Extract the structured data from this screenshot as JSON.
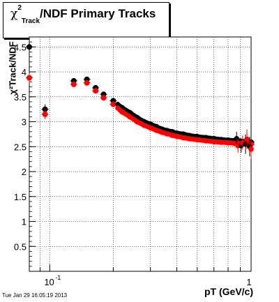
{
  "chart_data": {
    "type": "scatter",
    "title": "χ²_Track/NDF  Primary Tracks",
    "xlabel": "pT (GeV/c)",
    "ylabel": "χ²_Track/NDF",
    "xscale": "log",
    "xlim": [
      0.08,
      1.0
    ],
    "ylim": [
      0,
      4.5
    ],
    "grid": true,
    "yticks": [
      "0.5",
      "1",
      "1.5",
      "2",
      "2.5",
      "3",
      "3.5",
      "4",
      "4.5"
    ],
    "xticks": [
      "10",
      "-1",
      "1"
    ],
    "series": [
      {
        "color": "#000000",
        "x": [
          0.08,
          0.095,
          0.13,
          0.15,
          0.165,
          0.18,
          0.2,
          0.22,
          0.24,
          0.26,
          0.28,
          0.3,
          0.32,
          0.34,
          0.36,
          0.38,
          0.4,
          0.43,
          0.46,
          0.5,
          0.55,
          0.6,
          0.65,
          0.7,
          0.75,
          0.8,
          0.85,
          0.9,
          0.95,
          1.0
        ],
        "y": [
          4.5,
          3.25,
          3.82,
          3.85,
          3.68,
          3.55,
          3.42,
          3.28,
          3.18,
          3.08,
          3.0,
          2.95,
          2.9,
          2.85,
          2.82,
          2.8,
          2.77,
          2.75,
          2.72,
          2.7,
          2.68,
          2.66,
          2.64,
          2.63,
          2.62,
          2.61,
          2.6,
          2.59,
          2.58,
          2.57
        ]
      },
      {
        "color": "#ff0000",
        "x": [
          0.08,
          0.095,
          0.13,
          0.15,
          0.165,
          0.18,
          0.2,
          0.22,
          0.24,
          0.26,
          0.28,
          0.3,
          0.32,
          0.34,
          0.36,
          0.38,
          0.4,
          0.43,
          0.46,
          0.5,
          0.55,
          0.6,
          0.65,
          0.7,
          0.75,
          0.8,
          0.85,
          0.9,
          0.95,
          1.0
        ],
        "y": [
          3.88,
          3.15,
          3.75,
          3.78,
          3.62,
          3.48,
          3.35,
          3.2,
          3.1,
          3.0,
          2.93,
          2.88,
          2.83,
          2.79,
          2.76,
          2.73,
          2.71,
          2.68,
          2.66,
          2.64,
          2.62,
          2.6,
          2.59,
          2.58,
          2.57,
          2.56,
          2.56,
          2.55,
          2.55,
          2.55
        ]
      }
    ]
  },
  "title": {
    "chi": "χ",
    "sup": "2",
    "sub": "Track",
    "rest": "/NDF  Primary Tracks"
  },
  "ylabel": "χ²Track/NDF",
  "xaxis_label": "pT (GeV/c)",
  "footer": "Tue Jan 29 16:05:19 2013"
}
